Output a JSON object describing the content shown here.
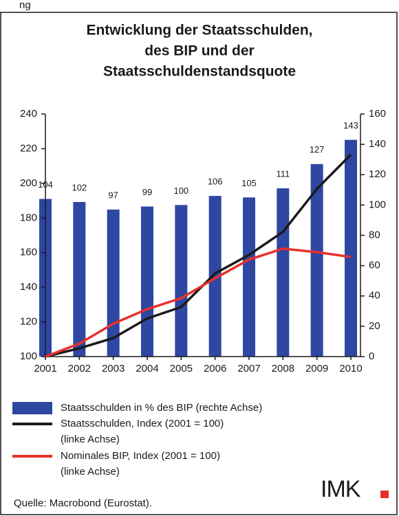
{
  "header_fragment": "ng",
  "chart_data": {
    "type": "bar_line",
    "title": [
      "Entwicklung der Staatsschulden,",
      "des BIP und der",
      "Staatsschuldenstandsquote"
    ],
    "categories": [
      "2001",
      "2002",
      "2003",
      "2004",
      "2005",
      "2006",
      "2007",
      "2008",
      "2009",
      "2010"
    ],
    "series": [
      {
        "name": "Staatsschulden in % des BIP (rechte Achse)",
        "color": "#2e47a2",
        "kind": "bar",
        "axis": "y2",
        "values": [
          104,
          102,
          97,
          99,
          100,
          106,
          105,
          111,
          127,
          143
        ]
      },
      {
        "name": "Staatsschulden, Index (2001 = 100)",
        "note": "(linke Achse)",
        "color": "#1a1a1a",
        "kind": "line",
        "values": [
          100,
          104.8,
          110.7,
          122,
          128.6,
          148,
          158.7,
          172,
          196.8,
          216.6
        ]
      },
      {
        "name": "Nominales BIP, Index (2001 = 100)",
        "note": "(linke Achse)",
        "color": "#e8302a",
        "kind": "line",
        "values": [
          100,
          107.5,
          119,
          127.4,
          133.7,
          145.2,
          156,
          162.3,
          160.3,
          157.5
        ]
      }
    ],
    "ylim": [
      100,
      240
    ],
    "yticks": [
      100,
      120,
      140,
      160,
      180,
      200,
      220,
      240
    ],
    "y2lim": [
      0,
      160
    ],
    "y2ticks": [
      0,
      20,
      40,
      60,
      80,
      100,
      120,
      140,
      160
    ],
    "source": "Quelle: Macrobond (Eurostat).",
    "logo": "IMK"
  }
}
